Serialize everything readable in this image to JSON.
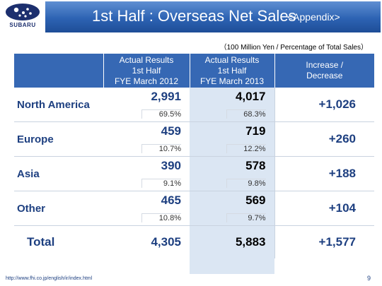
{
  "header": {
    "logo_text": "SUBARU",
    "title": "1st Half : Overseas Net Sales",
    "appendix": "<Appendix>"
  },
  "unit_note": "（100 Million Yen / Percentage of Total Sales）",
  "table": {
    "columns": [
      {
        "line1": "Actual Results",
        "line2": "1st Half",
        "line3": "FYE March 2012"
      },
      {
        "line1": "Actual Results",
        "line2": "1st Half",
        "line3": "FYE March 2013"
      },
      {
        "line1": "Increase /",
        "line2": "Decrease",
        "line3": ""
      }
    ],
    "rows": [
      {
        "region": "North America",
        "v2012": "2,991",
        "p2012": "69.5%",
        "v2013": "4,017",
        "p2013": "68.3%",
        "change": "+1,026"
      },
      {
        "region": "Europe",
        "v2012": "459",
        "p2012": "10.7%",
        "v2013": "719",
        "p2013": "12.2%",
        "change": "+260"
      },
      {
        "region": "Asia",
        "v2012": "390",
        "p2012": "9.1%",
        "v2013": "578",
        "p2013": "9.8%",
        "change": "+188"
      },
      {
        "region": "Other",
        "v2012": "465",
        "p2012": "10.8%",
        "v2013": "569",
        "p2013": "9.7%",
        "change": "+104"
      }
    ],
    "total": {
      "label": "Total",
      "v2012": "4,305",
      "v2013": "5,883",
      "change": "+1,577"
    }
  },
  "footer": {
    "url": "http://www.fhi.co.jp/english/ir/index.html",
    "page": "9"
  },
  "colors": {
    "title_bar": "#2d63b3",
    "header_cells": "#3668b4",
    "highlight_column": "#dbe6f3",
    "label_text": "#1d3f80"
  }
}
